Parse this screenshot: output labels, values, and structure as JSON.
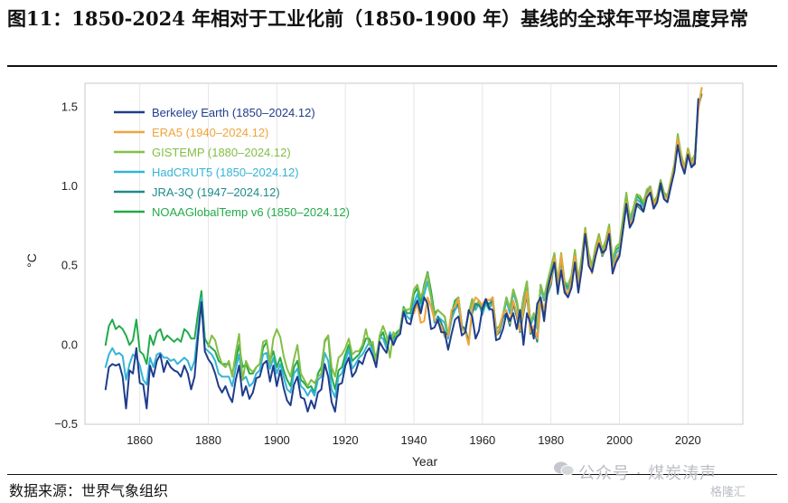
{
  "figure": {
    "title": "图11：1850-2024 年相对于工业化前（1850-1900 年）基线的全球年平均温度异常",
    "source": "数据来源：世界气象组织",
    "watermark": "公众号 · 煤炭涛声",
    "watermark_logo": "格隆汇"
  },
  "chart_data": {
    "type": "line",
    "xlabel": "Year",
    "ylabel": "°C",
    "xlim": [
      1844,
      2036
    ],
    "ylim": [
      -0.5,
      1.65
    ],
    "xticks": [
      "1860",
      "1880",
      "1900",
      "1920",
      "1940",
      "1960",
      "1980",
      "2000",
      "2020"
    ],
    "yticks": [
      "−0.5",
      "0.0",
      "0.5",
      "1.0",
      "1.5"
    ],
    "grid": "vertical",
    "legend_position": "top-left",
    "series": [
      {
        "name": "Berkeley Earth (1850–2024.12)",
        "color": "#1f3d8c",
        "start": 1850,
        "values": [
          -0.28,
          -0.14,
          -0.12,
          -0.13,
          -0.12,
          -0.2,
          -0.4,
          -0.16,
          -0.18,
          -0.02,
          -0.24,
          -0.25,
          -0.4,
          -0.13,
          -0.2,
          -0.1,
          -0.06,
          -0.17,
          -0.1,
          -0.14,
          -0.16,
          -0.17,
          -0.2,
          -0.13,
          -0.18,
          -0.28,
          -0.2,
          0.05,
          0.27,
          -0.04,
          -0.09,
          -0.12,
          -0.18,
          -0.26,
          -0.3,
          -0.26,
          -0.32,
          -0.36,
          -0.22,
          -0.13,
          -0.32,
          -0.26,
          -0.34,
          -0.3,
          -0.21,
          -0.2,
          -0.12,
          -0.1,
          -0.23,
          -0.13,
          -0.26,
          -0.16,
          -0.27,
          -0.35,
          -0.38,
          -0.25,
          -0.2,
          -0.33,
          -0.34,
          -0.42,
          -0.35,
          -0.4,
          -0.3,
          -0.28,
          -0.12,
          -0.2,
          -0.36,
          -0.42,
          -0.25,
          -0.24,
          -0.13,
          -0.08,
          -0.2,
          -0.17,
          -0.1,
          -0.12,
          -0.05,
          -0.02,
          -0.07,
          -0.14,
          0.02,
          -0.02,
          -0.05,
          0.06,
          0.0,
          0.05,
          0.07,
          0.21,
          0.14,
          0.13,
          0.23,
          0.28,
          0.2,
          0.3,
          0.26,
          0.1,
          0.11,
          0.16,
          0.08,
          0.08,
          -0.03,
          0.07,
          0.16,
          0.18,
          0.06,
          0.08,
          0.22,
          0.18,
          0.04,
          0.09,
          0.23,
          0.29,
          0.23,
          0.22,
          0.03,
          0.04,
          0.1,
          0.2,
          0.15,
          0.2,
          0.1,
          0.22,
          0.0,
          0.2,
          0.14,
          0.04,
          0.26,
          0.3,
          0.15,
          0.35,
          0.44,
          0.52,
          0.33,
          0.47,
          0.33,
          0.3,
          0.36,
          0.52,
          0.33,
          0.48,
          0.7,
          0.5,
          0.46,
          0.56,
          0.64,
          0.58,
          0.6,
          0.7,
          0.45,
          0.52,
          0.56,
          0.72,
          0.89,
          0.74,
          0.78,
          0.89,
          0.88,
          0.84,
          0.93,
          0.96,
          0.86,
          0.9,
          1.02,
          0.92,
          0.9,
          1.0,
          1.09,
          1.26,
          1.14,
          1.08,
          1.2,
          1.12,
          1.14,
          1.55
        ]
      },
      {
        "name": "ERA5 (1940–2024.12)",
        "color": "#f0a43a",
        "start": 1940,
        "values": [
          0.2,
          0.26,
          0.14,
          0.15,
          0.3,
          0.24,
          0.16,
          0.14,
          0.12,
          0.05,
          0.06,
          0.22,
          0.24,
          0.29,
          0.1,
          0.08,
          0.0,
          0.24,
          0.3,
          0.28,
          0.25,
          0.29,
          0.28,
          0.3,
          0.06,
          0.1,
          0.2,
          0.22,
          0.14,
          0.28,
          0.2,
          0.09,
          0.22,
          0.34,
          0.08,
          0.12,
          0.04,
          0.3,
          0.22,
          0.34,
          0.4,
          0.55,
          0.34,
          0.57,
          0.36,
          0.32,
          0.4,
          0.56,
          0.37,
          0.5,
          0.72,
          0.54,
          0.45,
          0.58,
          0.67,
          0.57,
          0.62,
          0.73,
          0.48,
          0.55,
          0.58,
          0.73,
          0.9,
          0.76,
          0.8,
          0.9,
          0.87,
          0.85,
          0.94,
          0.98,
          0.88,
          0.92,
          1.02,
          0.94,
          0.92,
          1.02,
          1.11,
          1.3,
          1.17,
          1.1,
          1.22,
          1.14,
          1.18,
          1.48,
          1.62
        ]
      },
      {
        "name": "GISTEMP (1880–2024.12)",
        "color": "#84be45",
        "start": 1880,
        "values": [
          -0.01,
          0.06,
          0.03,
          -0.06,
          -0.12,
          -0.14,
          -0.1,
          -0.2,
          -0.05,
          0.07,
          -0.22,
          -0.1,
          -0.15,
          -0.17,
          -0.14,
          -0.12,
          0.02,
          0.03,
          -0.12,
          0.04,
          0.1,
          0.05,
          -0.07,
          -0.15,
          -0.2,
          -0.09,
          0.0,
          -0.18,
          -0.22,
          -0.26,
          -0.22,
          -0.24,
          -0.2,
          -0.18,
          0.03,
          0.06,
          -0.14,
          -0.2,
          -0.08,
          -0.06,
          -0.02,
          0.04,
          -0.06,
          -0.04,
          -0.04,
          0.0,
          0.1,
          0.0,
          0.02,
          -0.12,
          0.06,
          0.12,
          0.06,
          -0.08,
          0.08,
          0.05,
          0.1,
          0.23,
          0.22,
          0.23,
          0.35,
          0.38,
          0.3,
          0.36,
          0.45,
          0.3,
          0.18,
          0.22,
          0.2,
          0.18,
          0.06,
          0.18,
          0.26,
          0.3,
          0.12,
          0.1,
          0.2,
          0.29,
          0.24,
          0.28,
          0.21,
          0.28,
          0.24,
          0.3,
          0.1,
          0.12,
          0.19,
          0.3,
          0.23,
          0.35,
          0.28,
          0.16,
          0.3,
          0.4,
          0.14,
          0.2,
          0.12,
          0.38,
          0.3,
          0.4,
          0.49,
          0.58,
          0.4,
          0.58,
          0.4,
          0.38,
          0.44,
          0.6,
          0.41,
          0.56,
          0.74,
          0.58,
          0.5,
          0.62,
          0.7,
          0.6,
          0.66,
          0.76,
          0.54,
          0.62,
          0.64,
          0.8,
          0.96,
          0.8,
          0.86,
          0.95,
          0.94,
          0.9,
          0.98,
          1.0,
          0.9,
          0.94,
          1.04,
          0.96,
          0.94,
          1.04,
          1.14,
          1.33,
          1.2,
          1.12,
          1.24,
          1.16,
          1.2,
          1.5,
          1.62
        ]
      },
      {
        "name": "HadCRUT5 (1850–2024.12)",
        "color": "#33b4d6",
        "start": 1850,
        "values": [
          -0.14,
          -0.06,
          -0.02,
          -0.06,
          -0.05,
          -0.07,
          -0.22,
          -0.12,
          -0.06,
          -0.08,
          -0.13,
          -0.22,
          -0.25,
          -0.08,
          -0.14,
          -0.06,
          -0.05,
          -0.08,
          -0.08,
          -0.1,
          -0.09,
          -0.12,
          -0.1,
          -0.08,
          -0.1,
          -0.16,
          -0.1,
          0.1,
          0.3,
          -0.02,
          -0.04,
          -0.06,
          -0.1,
          -0.18,
          -0.2,
          -0.2,
          -0.2,
          -0.26,
          -0.15,
          -0.06,
          -0.22,
          -0.2,
          -0.26,
          -0.24,
          -0.18,
          -0.16,
          -0.06,
          -0.05,
          -0.15,
          -0.08,
          -0.18,
          -0.12,
          -0.2,
          -0.28,
          -0.3,
          -0.18,
          -0.15,
          -0.26,
          -0.28,
          -0.32,
          -0.28,
          -0.32,
          -0.22,
          -0.2,
          -0.05,
          -0.1,
          -0.28,
          -0.33,
          -0.2,
          -0.18,
          -0.1,
          -0.03,
          -0.15,
          -0.12,
          -0.08,
          -0.06,
          -0.02,
          0.02,
          -0.04,
          -0.12,
          0.05,
          0.04,
          -0.02,
          0.08,
          0.02,
          0.06,
          0.1,
          0.22,
          0.18,
          0.16,
          0.26,
          0.32,
          0.22,
          0.32,
          0.4,
          0.3,
          0.14,
          0.18,
          0.16,
          0.14,
          0.04,
          0.16,
          0.22,
          0.25,
          0.1,
          0.1,
          0.2,
          0.27,
          0.22,
          0.26,
          0.19,
          0.26,
          0.22,
          0.28,
          0.08,
          0.1,
          0.17,
          0.28,
          0.2,
          0.33,
          0.26,
          0.14,
          0.28,
          0.38,
          0.12,
          0.18,
          0.1,
          0.36,
          0.28,
          0.38,
          0.46,
          0.55,
          0.37,
          0.55,
          0.37,
          0.35,
          0.41,
          0.57,
          0.39,
          0.53,
          0.72,
          0.55,
          0.48,
          0.6,
          0.68,
          0.59,
          0.64,
          0.74,
          0.5,
          0.58,
          0.6,
          0.76,
          0.92,
          0.78,
          0.83,
          0.92,
          0.9,
          0.87,
          0.95,
          0.99,
          0.88,
          0.92,
          1.03,
          0.95,
          0.93,
          1.02,
          1.12,
          1.3,
          1.18,
          1.1,
          1.22,
          1.14,
          1.16,
          1.52
        ]
      },
      {
        "name": "JRA-3Q (1947–2024.12)",
        "color": "#1f8a8a",
        "start": 1947,
        "values": [
          0.18,
          0.14,
          0.08,
          0.06,
          0.2,
          0.24,
          0.26,
          0.12,
          0.1,
          0.02,
          0.2,
          0.26,
          0.25,
          0.22,
          0.27,
          0.26,
          0.28,
          0.06,
          0.08,
          0.17,
          0.2,
          0.12,
          0.26,
          0.18,
          0.08,
          0.2,
          0.32,
          0.07,
          0.1,
          0.02,
          0.28,
          0.2,
          0.32,
          0.38,
          0.53,
          0.32,
          0.55,
          0.34,
          0.31,
          0.38,
          0.54,
          0.36,
          0.5,
          0.7,
          0.52,
          0.46,
          0.56,
          0.65,
          0.56,
          0.61,
          0.72,
          0.47,
          0.54,
          0.57,
          0.72,
          0.88,
          0.75,
          0.79,
          0.88,
          0.86,
          0.84,
          0.93,
          0.96,
          0.86,
          0.9,
          1.0,
          0.92,
          0.9,
          1.0,
          1.1,
          1.27,
          1.15,
          1.08,
          1.2,
          1.12,
          1.15,
          1.5,
          1.58
        ]
      },
      {
        "name": "NOAAGlobalTemp v6 (1850–2024.12)",
        "color": "#22aa4a",
        "start": 1850,
        "values": [
          0.0,
          0.12,
          0.16,
          0.1,
          0.12,
          0.1,
          0.06,
          0.0,
          0.03,
          0.16,
          -0.04,
          -0.06,
          -0.12,
          0.06,
          0.0,
          0.08,
          0.1,
          0.03,
          0.06,
          0.04,
          0.02,
          0.04,
          0.02,
          0.1,
          0.08,
          0.04,
          0.04,
          0.2,
          0.34,
          0.04,
          0.0,
          -0.02,
          -0.04,
          -0.1,
          -0.12,
          -0.12,
          -0.12,
          -0.18,
          -0.1,
          0.0,
          -0.14,
          -0.12,
          -0.18,
          -0.18,
          -0.14,
          -0.12,
          -0.02,
          0.02,
          -0.1,
          -0.04,
          -0.14,
          -0.08,
          -0.16,
          -0.22,
          -0.26,
          -0.14,
          -0.1,
          -0.22,
          -0.24,
          -0.27,
          -0.26,
          -0.3,
          -0.18,
          -0.14,
          0.02,
          0.06,
          -0.2,
          -0.28,
          -0.16,
          -0.14,
          -0.06,
          0.0,
          -0.1,
          -0.08,
          -0.06,
          -0.02,
          0.04,
          0.04,
          -0.02,
          -0.08,
          0.04,
          0.08,
          0.0,
          0.08,
          0.04,
          0.08,
          0.1,
          0.24,
          0.2,
          0.2,
          0.32,
          0.36,
          0.26,
          0.38,
          0.46,
          0.34,
          0.2,
          0.22,
          0.2,
          0.18,
          0.06,
          0.2,
          0.28,
          0.3,
          0.12,
          0.1,
          0.2,
          0.29,
          0.24,
          0.28,
          0.21,
          0.28,
          0.24,
          0.3,
          0.1,
          0.12,
          0.19,
          0.3,
          0.23,
          0.35,
          0.28,
          0.16,
          0.3,
          0.4,
          0.14,
          0.2,
          0.12,
          0.38,
          0.3,
          0.4,
          0.48,
          0.57,
          0.38,
          0.57,
          0.39,
          0.36,
          0.43,
          0.59,
          0.4,
          0.55,
          0.73,
          0.57,
          0.49,
          0.61,
          0.69,
          0.59,
          0.65,
          0.75,
          0.52,
          0.6,
          0.62,
          0.78,
          0.94,
          0.79,
          0.84,
          0.94,
          0.92,
          0.88,
          0.97,
          1.0,
          0.89,
          0.93,
          1.04,
          0.96,
          0.94,
          1.03,
          1.13,
          1.31,
          1.19,
          1.11,
          1.23,
          1.15,
          1.18,
          1.52
        ]
      }
    ]
  }
}
